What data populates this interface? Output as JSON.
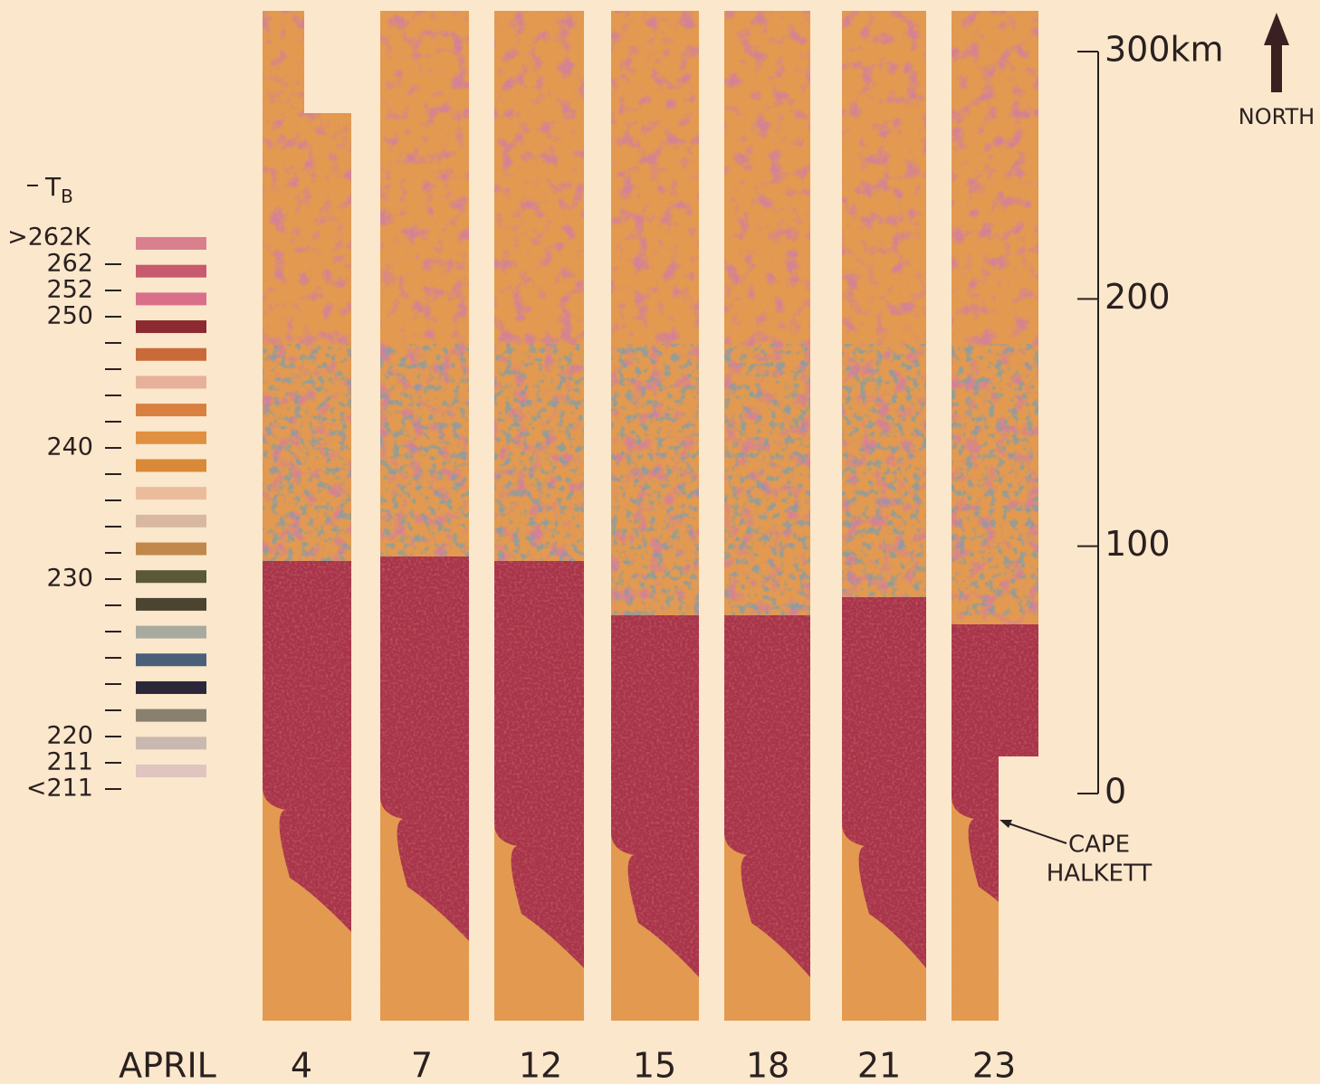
{
  "legend": {
    "title": "T",
    "title_sub": "B",
    "labels": [
      ">262K",
      "262",
      "252",
      "250",
      null,
      null,
      null,
      null,
      "240",
      null,
      null,
      null,
      null,
      "230",
      null,
      null,
      null,
      null,
      null,
      "220",
      "211",
      "<211"
    ],
    "colors": [
      "#d9808f",
      "#c85a6e",
      "#d8708a",
      "#8c2a32",
      "#c86a3a",
      "#e7b09a",
      "#d88040",
      "#e09040",
      "#d88a38",
      "#ebbc9c",
      "#d8b8a0",
      "#c0884a",
      "#5a5838",
      "#4a4430",
      "#a8aaa0",
      "#4a6078",
      "#2a2838",
      "#8a8070",
      "#c8b8b0",
      "#e0c4c0"
    ]
  },
  "month": "APRIL",
  "days": [
    "4",
    "7",
    "12",
    "15",
    "18",
    "21",
    "23"
  ],
  "scale": {
    "lim": [
      0,
      300
    ],
    "ticks": [
      {
        "value": 300,
        "label": "300km"
      },
      200,
      100,
      0
    ]
  },
  "north": "NORTH",
  "annotation": {
    "lines": [
      "CAPE",
      "HALKETT"
    ]
  }
}
